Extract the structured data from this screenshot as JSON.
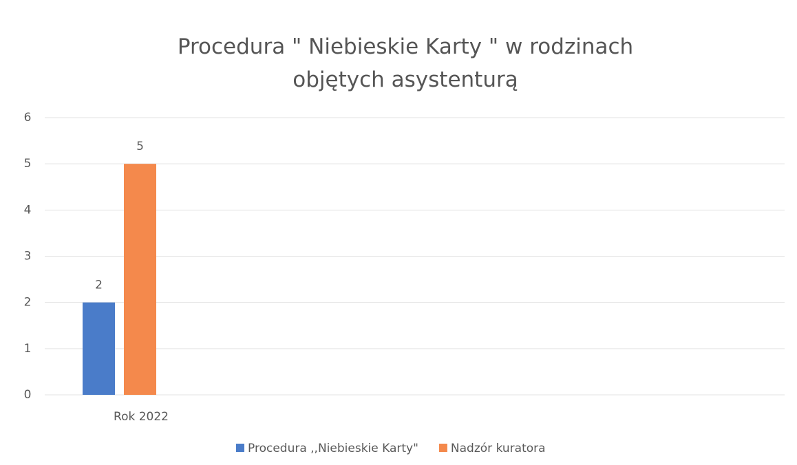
{
  "chart_data": {
    "type": "bar",
    "title": "Procedura \" Niebieskie Karty \" w rodzinach objętych asystenturą",
    "categories": [
      "Rok 2022"
    ],
    "series": [
      {
        "name": "Procedura ,,Niebieskie Karty\"",
        "color": "#4a7cc9",
        "values": [
          2
        ]
      },
      {
        "name": "Nadzór kuratora",
        "color": "#f4894c",
        "values": [
          5
        ]
      }
    ],
    "ylim": [
      0,
      6
    ],
    "yticks": [
      0,
      1,
      2,
      3,
      4,
      5,
      6
    ],
    "grid": true,
    "legend": "bottom"
  }
}
